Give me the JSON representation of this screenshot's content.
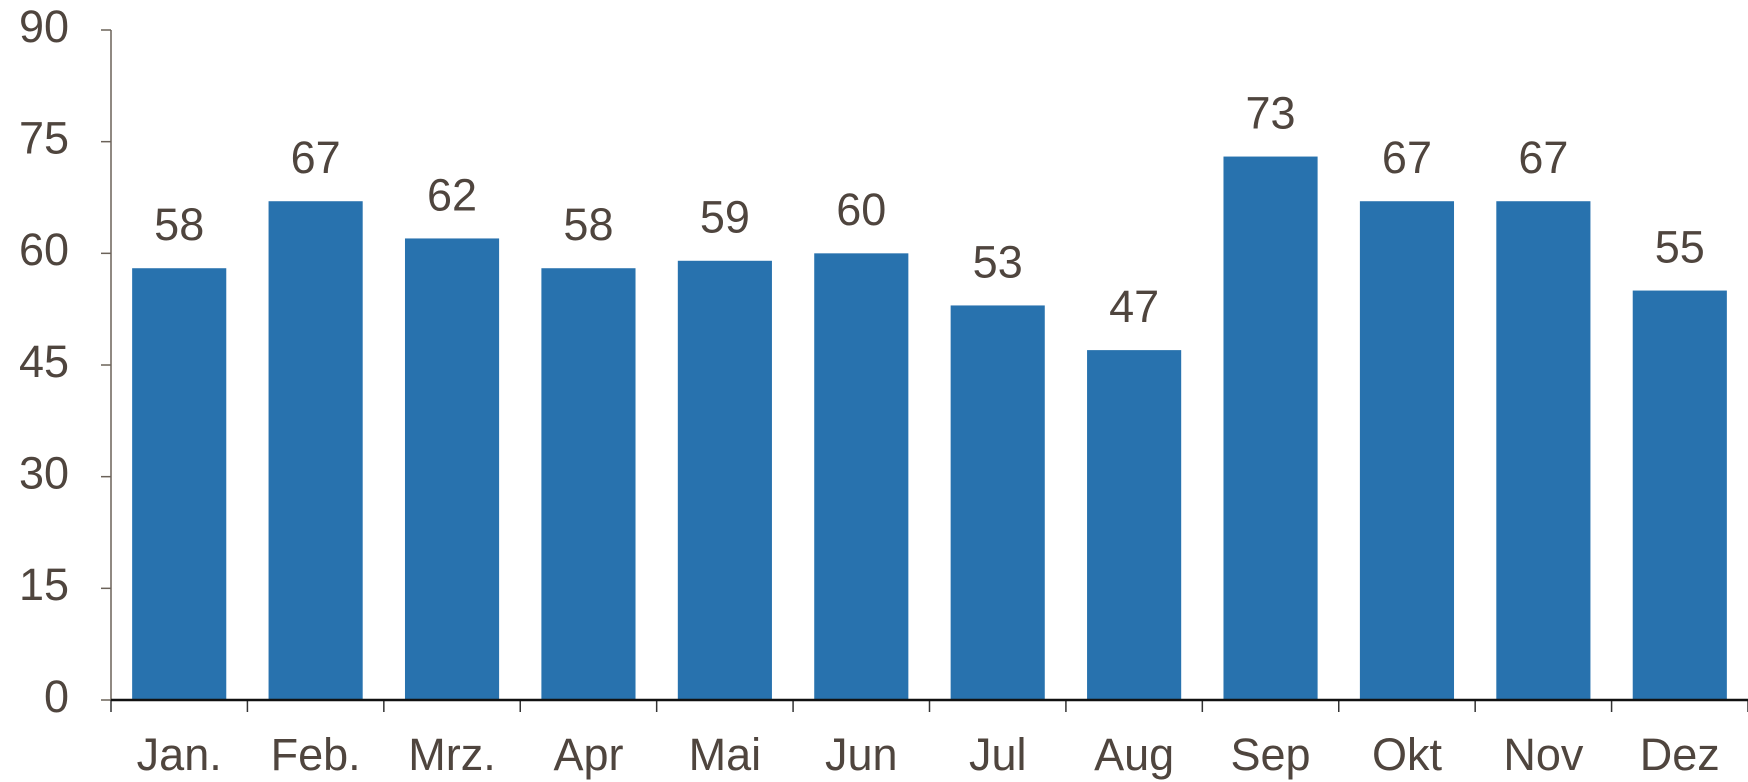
{
  "chart_data": {
    "type": "bar",
    "categories": [
      "Jan.",
      "Feb.",
      "Mrz.",
      "Apr",
      "Mai",
      "Jun",
      "Jul",
      "Aug",
      "Sep",
      "Okt",
      "Nov",
      "Dez"
    ],
    "values": [
      58,
      67,
      62,
      58,
      59,
      60,
      53,
      47,
      73,
      67,
      67,
      55
    ],
    "color": "#2872ae",
    "ylim": [
      0,
      90
    ],
    "yticks": [
      0,
      15,
      30,
      45,
      60,
      75,
      90
    ],
    "grid": false
  }
}
